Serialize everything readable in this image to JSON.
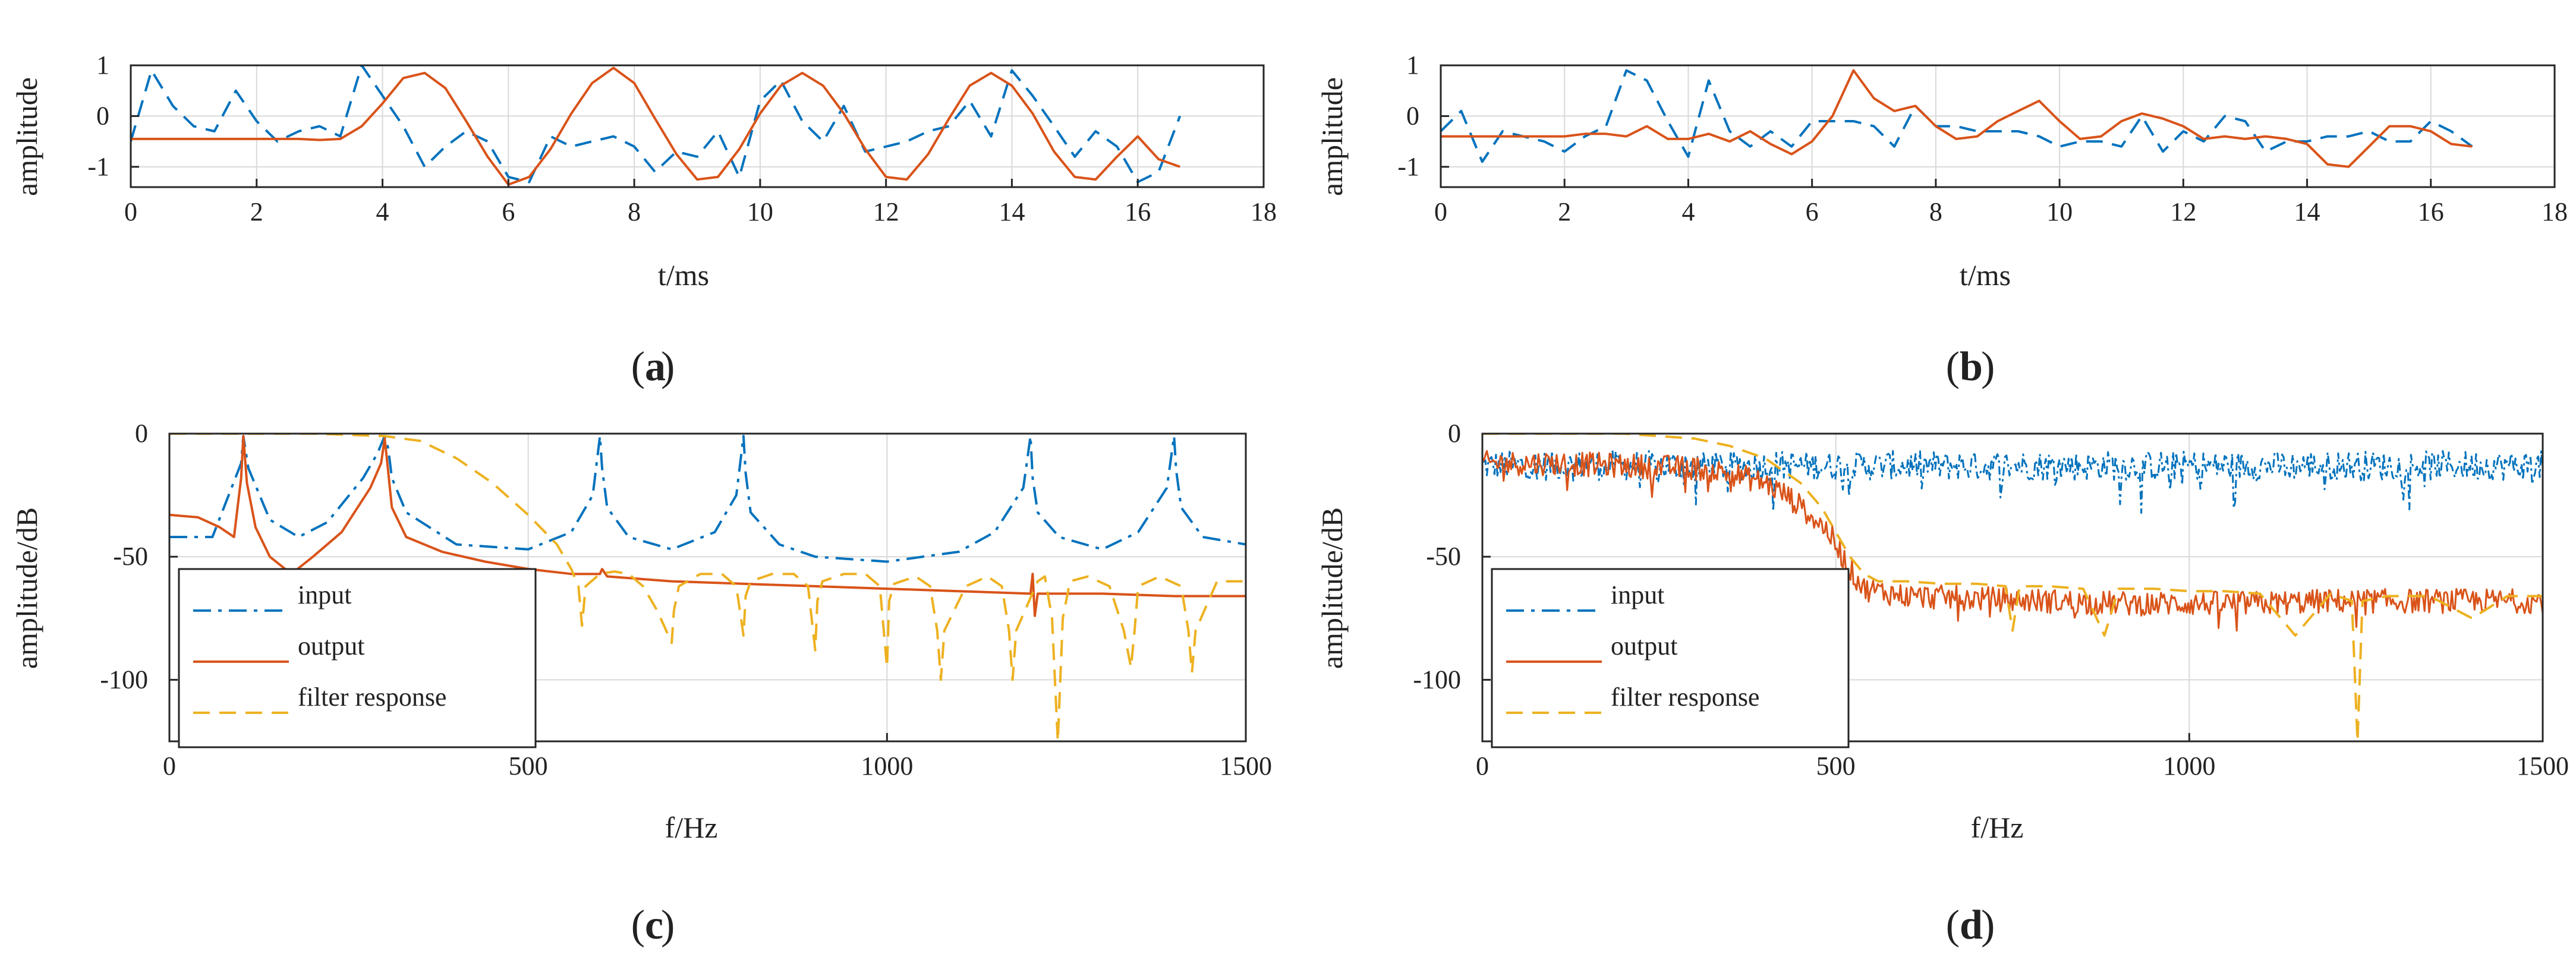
{
  "colors": {
    "input": "#0072bd",
    "output": "#d95319",
    "filter": "#edb120",
    "grid": "#d9d9d9",
    "axis": "#262626"
  },
  "chart_data": [
    {
      "id": "a",
      "type": "line",
      "panel_label": "a",
      "xlabel": "t/ms",
      "ylabel": "amplitude",
      "xlim": [
        0,
        18
      ],
      "ylim": [
        -1.4,
        1
      ],
      "xticks": [
        0,
        2,
        4,
        6,
        8,
        10,
        12,
        14,
        16,
        18
      ],
      "xtick_labels": [
        "0",
        "2",
        "4",
        "6",
        "8",
        "10",
        "12",
        "14",
        "16",
        "18"
      ],
      "yticks": [
        -1,
        0,
        1
      ],
      "ytick_labels": [
        "-1",
        "0",
        "1"
      ],
      "series": [
        {
          "name": "input",
          "style": "dashed",
          "x": [
            0,
            0.33,
            0.67,
            1,
            1.33,
            1.67,
            2,
            2.33,
            2.67,
            3,
            3.33,
            3.67,
            4,
            4.33,
            4.67,
            5,
            5.33,
            5.67,
            6,
            6.33,
            6.67,
            7,
            7.33,
            7.67,
            8,
            8.33,
            8.67,
            9,
            9.33,
            9.67,
            10,
            10.33,
            10.67,
            11,
            11.33,
            11.67,
            12,
            12.33,
            12.67,
            13,
            13.33,
            13.67,
            14,
            14.33,
            14.67,
            15,
            15.33,
            15.67,
            16,
            16.33,
            16.67
          ],
          "values": [
            -0.5,
            0.9,
            0.2,
            -0.2,
            -0.3,
            0.5,
            -0.1,
            -0.5,
            -0.3,
            -0.2,
            -0.4,
            1.0,
            0.4,
            -0.2,
            -1.0,
            -0.6,
            -0.3,
            -0.5,
            -1.2,
            -1.3,
            -0.4,
            -0.6,
            -0.5,
            -0.4,
            -0.6,
            -1.1,
            -0.7,
            -0.8,
            -0.3,
            -1.2,
            0.3,
            0.7,
            -0.1,
            -0.5,
            0.2,
            -0.7,
            -0.6,
            -0.5,
            -0.3,
            -0.2,
            0.3,
            -0.4,
            0.9,
            0.4,
            -0.2,
            -0.8,
            -0.3,
            -0.6,
            -1.3,
            -1.1,
            0.0
          ]
        },
        {
          "name": "output",
          "style": "solid",
          "x": [
            0,
            0.33,
            0.67,
            1,
            1.33,
            1.67,
            2,
            2.33,
            2.67,
            3,
            3.33,
            3.67,
            4,
            4.33,
            4.67,
            5,
            5.33,
            5.67,
            6,
            6.33,
            6.67,
            7,
            7.33,
            7.67,
            8,
            8.33,
            8.67,
            9,
            9.33,
            9.67,
            10,
            10.33,
            10.67,
            11,
            11.33,
            11.67,
            12,
            12.33,
            12.67,
            13,
            13.33,
            13.67,
            14,
            14.33,
            14.67,
            15,
            15.33,
            15.67,
            16,
            16.33,
            16.67
          ],
          "values": [
            -0.45,
            -0.45,
            -0.45,
            -0.45,
            -0.45,
            -0.45,
            -0.45,
            -0.45,
            -0.45,
            -0.47,
            -0.45,
            -0.2,
            0.25,
            0.75,
            0.85,
            0.55,
            -0.1,
            -0.8,
            -1.35,
            -1.2,
            -0.65,
            0.05,
            0.65,
            0.95,
            0.65,
            -0.05,
            -0.75,
            -1.25,
            -1.2,
            -0.65,
            0.05,
            0.6,
            0.85,
            0.6,
            0.05,
            -0.65,
            -1.2,
            -1.25,
            -0.75,
            -0.05,
            0.6,
            0.85,
            0.6,
            0.05,
            -0.7,
            -1.2,
            -1.25,
            -0.8,
            -0.4,
            -0.85,
            -1.0
          ]
        }
      ]
    },
    {
      "id": "b",
      "type": "line",
      "panel_label": "b",
      "xlabel": "t/ms",
      "ylabel": "amplitude",
      "xlim": [
        0,
        18
      ],
      "ylim": [
        -1.4,
        1
      ],
      "xticks": [
        0,
        2,
        4,
        6,
        8,
        10,
        12,
        14,
        16,
        18
      ],
      "xtick_labels": [
        "0",
        "2",
        "4",
        "6",
        "8",
        "10",
        "12",
        "14",
        "16",
        "18"
      ],
      "yticks": [
        -1,
        0,
        1
      ],
      "ytick_labels": [
        "-1",
        "0",
        "1"
      ],
      "series": [
        {
          "name": "input",
          "style": "dashed",
          "x": [
            0,
            0.33,
            0.67,
            1,
            1.33,
            1.67,
            2,
            2.33,
            2.67,
            3,
            3.33,
            3.67,
            4,
            4.33,
            4.67,
            5,
            5.33,
            5.67,
            6,
            6.33,
            6.67,
            7,
            7.33,
            7.67,
            8,
            8.33,
            8.67,
            9,
            9.33,
            9.67,
            10,
            10.33,
            10.67,
            11,
            11.33,
            11.67,
            12,
            12.33,
            12.67,
            13,
            13.33,
            13.67,
            14,
            14.33,
            14.67,
            15,
            15.33,
            15.67,
            16,
            16.33,
            16.67
          ],
          "values": [
            -0.3,
            0.1,
            -0.9,
            -0.3,
            -0.4,
            -0.5,
            -0.7,
            -0.4,
            -0.2,
            0.9,
            0.7,
            -0.1,
            -0.8,
            0.7,
            -0.3,
            -0.6,
            -0.3,
            -0.6,
            -0.1,
            -0.1,
            -0.1,
            -0.2,
            -0.6,
            0.2,
            -0.2,
            -0.2,
            -0.3,
            -0.3,
            -0.3,
            -0.4,
            -0.6,
            -0.5,
            -0.5,
            -0.6,
            0.0,
            -0.7,
            -0.3,
            -0.5,
            0.0,
            -0.1,
            -0.7,
            -0.5,
            -0.5,
            -0.4,
            -0.4,
            -0.3,
            -0.5,
            -0.5,
            -0.1,
            -0.3,
            -0.6
          ]
        },
        {
          "name": "output",
          "style": "solid",
          "x": [
            0,
            0.33,
            0.67,
            1,
            1.33,
            1.67,
            2,
            2.33,
            2.67,
            3,
            3.33,
            3.67,
            4,
            4.33,
            4.67,
            5,
            5.33,
            5.67,
            6,
            6.33,
            6.67,
            7,
            7.33,
            7.67,
            8,
            8.33,
            8.67,
            9,
            9.33,
            9.67,
            10,
            10.33,
            10.67,
            11,
            11.33,
            11.67,
            12,
            12.33,
            12.67,
            13,
            13.33,
            13.67,
            14,
            14.33,
            14.67,
            15,
            15.33,
            15.67,
            16,
            16.33,
            16.67
          ],
          "values": [
            -0.4,
            -0.4,
            -0.4,
            -0.4,
            -0.4,
            -0.4,
            -0.4,
            -0.35,
            -0.35,
            -0.4,
            -0.2,
            -0.45,
            -0.45,
            -0.35,
            -0.5,
            -0.3,
            -0.55,
            -0.75,
            -0.5,
            0.0,
            0.9,
            0.35,
            0.1,
            0.2,
            -0.2,
            -0.45,
            -0.4,
            -0.1,
            0.1,
            0.3,
            -0.1,
            -0.45,
            -0.4,
            -0.1,
            0.05,
            -0.05,
            -0.2,
            -0.45,
            -0.4,
            -0.45,
            -0.4,
            -0.45,
            -0.55,
            -0.95,
            -1.0,
            -0.6,
            -0.2,
            -0.2,
            -0.3,
            -0.55,
            -0.6
          ]
        }
      ]
    },
    {
      "id": "c",
      "type": "line",
      "panel_label": "c",
      "xlabel": "f/Hz",
      "ylabel": "amplitude/dB",
      "xlim": [
        0,
        1500
      ],
      "ylim": [
        -125,
        0
      ],
      "xticks": [
        0,
        500,
        1000,
        1500
      ],
      "xtick_labels": [
        "0",
        "500",
        "1000",
        "1500"
      ],
      "yticks": [
        -100,
        -50,
        0
      ],
      "ytick_labels": [
        "-100",
        "-50",
        "0"
      ],
      "legend": {
        "position": "lower-left",
        "entries": [
          "input",
          "output",
          "filter response"
        ]
      },
      "series": [
        {
          "name": "input",
          "style": "dashdot",
          "x": [
            0,
            60,
            100,
            103,
            110,
            140,
            180,
            220,
            270,
            290,
            300,
            305,
            310,
            330,
            400,
            500,
            560,
            590,
            600,
            603,
            610,
            640,
            700,
            760,
            790,
            800,
            803,
            810,
            850,
            900,
            1000,
            1100,
            1150,
            1190,
            1200,
            1203,
            1210,
            1240,
            1300,
            1350,
            1390,
            1400,
            1403,
            1410,
            1440,
            1500
          ],
          "values": [
            -42,
            -42,
            -12,
            -1,
            -14,
            -35,
            -42,
            -36,
            -18,
            -8,
            -1,
            -6,
            -18,
            -32,
            -45,
            -47,
            -40,
            -25,
            -1,
            -14,
            -30,
            -42,
            -47,
            -40,
            -25,
            -1,
            -16,
            -32,
            -45,
            -50,
            -52,
            -48,
            -40,
            -22,
            -1,
            -18,
            -32,
            -42,
            -47,
            -40,
            -22,
            -1,
            -15,
            -30,
            -42,
            -45
          ]
        },
        {
          "name": "output",
          "style": "solid",
          "x": [
            0,
            40,
            70,
            90,
            100,
            103,
            108,
            120,
            140,
            170,
            200,
            240,
            280,
            295,
            300,
            303,
            310,
            330,
            380,
            440,
            500,
            560,
            600,
            603,
            610,
            700,
            800,
            900,
            1000,
            1100,
            1200,
            1203,
            1206,
            1210,
            1300,
            1400,
            1500
          ],
          "values": [
            -33,
            -34,
            -38,
            -42,
            -18,
            -1,
            -20,
            -38,
            -50,
            -57,
            -50,
            -40,
            -22,
            -12,
            -2,
            -10,
            -30,
            -42,
            -48,
            -52,
            -55,
            -57,
            -57,
            -55,
            -58,
            -60,
            -61,
            -62,
            -63,
            -64,
            -65,
            -57,
            -74,
            -65,
            -65,
            -66,
            -66
          ]
        },
        {
          "name": "filter response",
          "style": "dashed",
          "x": [
            0,
            100,
            200,
            300,
            350,
            400,
            450,
            500,
            540,
            560,
            570,
            575,
            580,
            600,
            620,
            640,
            660,
            680,
            700,
            703,
            710,
            740,
            770,
            790,
            800,
            803,
            810,
            840,
            870,
            890,
            900,
            903,
            910,
            940,
            970,
            990,
            1000,
            1003,
            1010,
            1040,
            1060,
            1070,
            1075,
            1080,
            1110,
            1140,
            1160,
            1170,
            1175,
            1180,
            1210,
            1220,
            1230,
            1238,
            1245,
            1255,
            1280,
            1310,
            1330,
            1340,
            1345,
            1350,
            1380,
            1410,
            1420,
            1425,
            1430,
            1460,
            1500
          ],
          "values": [
            0,
            0,
            0,
            -1,
            -3,
            -10,
            -20,
            -33,
            -45,
            -55,
            -62,
            -78,
            -62,
            -57,
            -56,
            -57,
            -62,
            -72,
            -85,
            -72,
            -62,
            -57,
            -57,
            -62,
            -82,
            -66,
            -60,
            -57,
            -57,
            -62,
            -88,
            -68,
            -60,
            -57,
            -57,
            -62,
            -95,
            -68,
            -61,
            -58,
            -62,
            -80,
            -100,
            -80,
            -62,
            -58,
            -62,
            -80,
            -100,
            -80,
            -60,
            -58,
            -75,
            -125,
            -75,
            -60,
            -58,
            -62,
            -80,
            -95,
            -80,
            -62,
            -58,
            -62,
            -80,
            -97,
            -80,
            -60,
            -60
          ]
        }
      ]
    },
    {
      "id": "d",
      "type": "line",
      "panel_label": "d",
      "xlabel": "f/Hz",
      "ylabel": "amplitude/dB",
      "xlim": [
        0,
        1500
      ],
      "ylim": [
        -125,
        0
      ],
      "xticks": [
        0,
        500,
        1000,
        1500
      ],
      "xtick_labels": [
        "0",
        "500",
        "1000",
        "1500"
      ],
      "yticks": [
        -100,
        -50,
        0
      ],
      "ytick_labels": [
        "-100",
        "-50",
        "0"
      ],
      "legend": {
        "position": "lower-left",
        "entries": [
          "input",
          "output",
          "filter response"
        ]
      },
      "series": [
        {
          "name": "input",
          "style": "dashdot",
          "noisy": true,
          "x": [
            0,
            1500
          ],
          "values": [
            -13,
            -13
          ],
          "spread": 6
        },
        {
          "name": "output",
          "style": "solid",
          "noisy": true,
          "x": [
            0,
            100,
            200,
            300,
            350,
            400,
            430,
            460,
            490,
            520,
            540,
            600,
            700,
            800,
            900,
            1000,
            1100,
            1200,
            1300,
            1400,
            1500
          ],
          "values": [
            -12,
            -12,
            -13,
            -14,
            -16,
            -20,
            -25,
            -32,
            -40,
            -55,
            -63,
            -66,
            -67,
            -68,
            -69,
            -69,
            -69,
            -68,
            -68,
            -68,
            -68
          ],
          "spread": 5
        },
        {
          "name": "filter response",
          "style": "dashed",
          "x": [
            0,
            100,
            200,
            300,
            350,
            400,
            450,
            480,
            500,
            520,
            540,
            560,
            600,
            650,
            700,
            740,
            750,
            760,
            800,
            850,
            880,
            900,
            950,
            1000,
            1050,
            1100,
            1150,
            1200,
            1230,
            1238,
            1245,
            1280,
            1340,
            1400,
            1450,
            1500
          ],
          "values": [
            0,
            0,
            0,
            -2,
            -5,
            -10,
            -20,
            -30,
            -40,
            -50,
            -57,
            -60,
            -60,
            -61,
            -61,
            -62,
            -80,
            -62,
            -62,
            -63,
            -82,
            -63,
            -63,
            -64,
            -64,
            -65,
            -82,
            -65,
            -68,
            -125,
            -68,
            -66,
            -66,
            -75,
            -66,
            -66
          ],
          "spread": 3
        }
      ]
    }
  ]
}
